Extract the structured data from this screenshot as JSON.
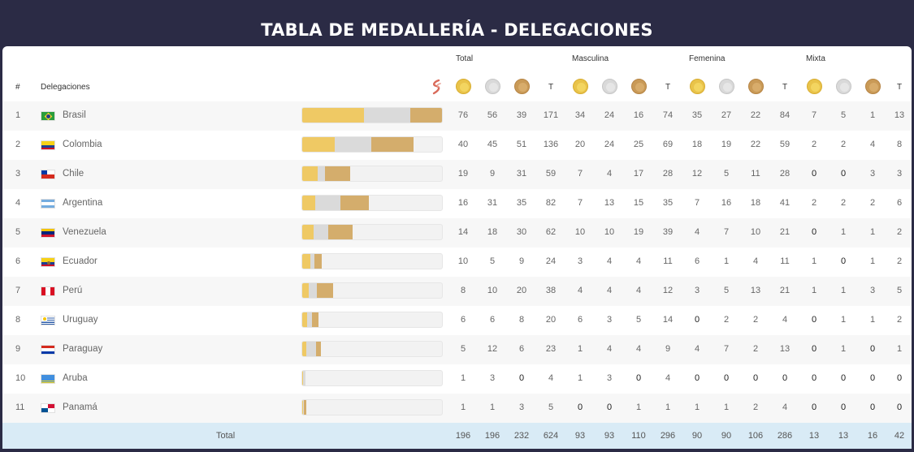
{
  "title": "TABLA DE MEDALLERÍA - DELEGACIONES",
  "header": {
    "rank": "#",
    "delegation": "Delegaciones",
    "groups": [
      "Total",
      "Masculina",
      "Femenina",
      "Mixta"
    ],
    "total_col": "T"
  },
  "colors": {
    "gold": "#efc964",
    "silver": "#dadada",
    "bronze": "#d4ad6c"
  },
  "rows": [
    {
      "rank": "1",
      "name": "Brasil",
      "flag": "brazil-flag",
      "bar": [
        76,
        56,
        39
      ],
      "values": [
        76,
        56,
        39,
        171,
        34,
        24,
        16,
        74,
        35,
        27,
        22,
        84,
        7,
        5,
        1,
        13
      ]
    },
    {
      "rank": "2",
      "name": "Colombia",
      "flag": "colombia-flag",
      "bar": [
        40,
        45,
        51
      ],
      "values": [
        40,
        45,
        51,
        136,
        20,
        24,
        25,
        69,
        18,
        19,
        22,
        59,
        2,
        2,
        4,
        8
      ]
    },
    {
      "rank": "3",
      "name": "Chile",
      "flag": "chile-flag",
      "bar": [
        19,
        9,
        31
      ],
      "values": [
        19,
        9,
        31,
        59,
        7,
        4,
        17,
        28,
        12,
        5,
        11,
        28,
        0,
        0,
        3,
        3
      ]
    },
    {
      "rank": "4",
      "name": "Argentina",
      "flag": "argentina-flag",
      "bar": [
        16,
        31,
        35
      ],
      "values": [
        16,
        31,
        35,
        82,
        7,
        13,
        15,
        35,
        7,
        16,
        18,
        41,
        2,
        2,
        2,
        6
      ]
    },
    {
      "rank": "5",
      "name": "Venezuela",
      "flag": "venezuela-flag",
      "bar": [
        14,
        18,
        30
      ],
      "values": [
        14,
        18,
        30,
        62,
        10,
        10,
        19,
        39,
        4,
        7,
        10,
        21,
        0,
        1,
        1,
        2
      ]
    },
    {
      "rank": "6",
      "name": "Ecuador",
      "flag": "ecuador-flag",
      "bar": [
        10,
        5,
        9
      ],
      "values": [
        10,
        5,
        9,
        24,
        3,
        4,
        4,
        11,
        6,
        1,
        4,
        11,
        1,
        0,
        1,
        2
      ]
    },
    {
      "rank": "7",
      "name": "Perú",
      "flag": "peru-flag",
      "bar": [
        8,
        10,
        20
      ],
      "values": [
        8,
        10,
        20,
        38,
        4,
        4,
        4,
        12,
        3,
        5,
        13,
        21,
        1,
        1,
        3,
        5
      ]
    },
    {
      "rank": "8",
      "name": "Uruguay",
      "flag": "uruguay-flag",
      "bar": [
        6,
        6,
        8
      ],
      "values": [
        6,
        6,
        8,
        20,
        6,
        3,
        5,
        14,
        0,
        2,
        2,
        4,
        0,
        1,
        1,
        2
      ]
    },
    {
      "rank": "9",
      "name": "Paraguay",
      "flag": "paraguay-flag",
      "bar": [
        5,
        12,
        6
      ],
      "values": [
        5,
        12,
        6,
        23,
        1,
        4,
        4,
        9,
        4,
        7,
        2,
        13,
        0,
        1,
        0,
        1
      ]
    },
    {
      "rank": "10",
      "name": "Aruba",
      "flag": "aruba-flag",
      "bar": [
        1,
        3,
        0
      ],
      "values": [
        1,
        3,
        0,
        4,
        1,
        3,
        0,
        4,
        0,
        0,
        0,
        0,
        0,
        0,
        0,
        0
      ]
    },
    {
      "rank": "11",
      "name": "Panamá",
      "flag": "panama-flag",
      "bar": [
        1,
        1,
        3
      ],
      "values": [
        1,
        1,
        3,
        5,
        0,
        0,
        1,
        1,
        1,
        1,
        2,
        4,
        0,
        0,
        0,
        0
      ]
    }
  ],
  "totals": {
    "label": "Total",
    "values": [
      196,
      196,
      232,
      624,
      93,
      93,
      110,
      296,
      90,
      90,
      106,
      286,
      13,
      13,
      16,
      42
    ]
  }
}
